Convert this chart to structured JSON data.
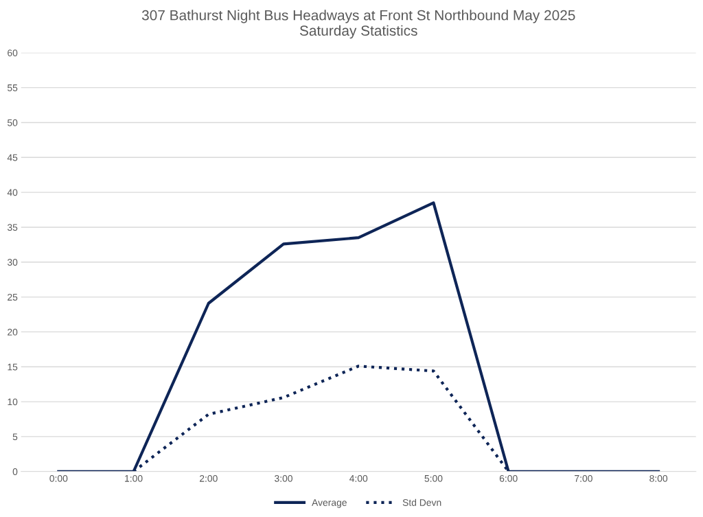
{
  "chart_data": {
    "type": "line",
    "title": "307 Bathurst Night Bus Headways at Front St Northbound May 2025\nSaturday Statistics",
    "categories": [
      "0:00",
      "1:00",
      "2:00",
      "3:00",
      "4:00",
      "5:00",
      "6:00",
      "7:00",
      "8:00"
    ],
    "series": [
      {
        "name": "Average",
        "color": "#0e2557",
        "line_style": "solid",
        "values": [
          0,
          0,
          24.1,
          32.6,
          33.5,
          38.5,
          0,
          0,
          0
        ]
      },
      {
        "name": "Std Devn",
        "color": "#0e2557",
        "line_style": "dotted",
        "values": [
          null,
          0,
          8.2,
          10.6,
          15.1,
          14.4,
          0,
          null,
          null
        ]
      }
    ],
    "ylim": [
      0,
      60
    ],
    "yticks": [
      0,
      5,
      10,
      15,
      20,
      25,
      30,
      35,
      40,
      45,
      50,
      55,
      60
    ],
    "grid": "y",
    "legend": "bottom",
    "marker": "none"
  }
}
